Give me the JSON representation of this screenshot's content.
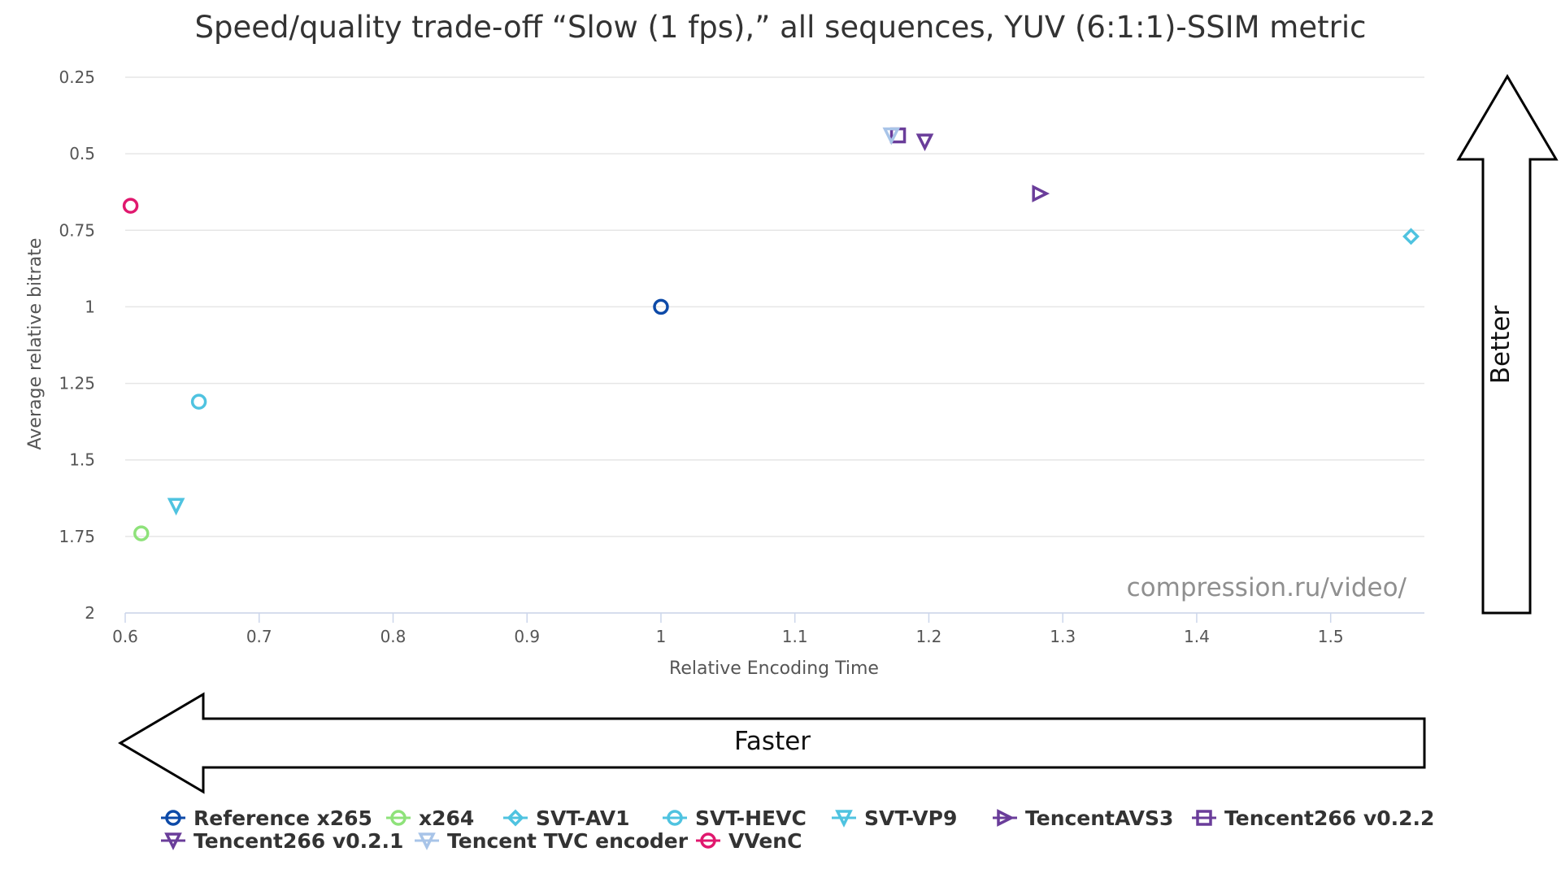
{
  "chart_data": {
    "type": "scatter",
    "title": "Speed/quality trade-off “Slow (1 fps),” all sequences, YUV (6:1:1)-SSIM metric",
    "xlabel": "Relative Encoding Time",
    "ylabel": "Average relative bitrate",
    "xlim": [
      0.6,
      1.57
    ],
    "ylim": [
      0.25,
      2
    ],
    "y_reversed": true,
    "x_ticks": [
      "0.6",
      "0.7",
      "0.8",
      "0.9",
      "1",
      "1.1",
      "1.2",
      "1.3",
      "1.4",
      "1.5"
    ],
    "y_ticks": [
      "0.25",
      "0.5",
      "0.75",
      "1",
      "1.25",
      "1.5",
      "1.75",
      "2"
    ],
    "grid": "horizontal",
    "legend_position": "bottom",
    "watermark": "compression.ru/video/",
    "arrow_faster_label": "Faster",
    "arrow_better_label": "Better",
    "series": [
      {
        "name": "Reference x265",
        "color": "#0d4aa8",
        "marker": "circle",
        "points": [
          [
            1.0,
            1.0
          ]
        ]
      },
      {
        "name": "x264",
        "color": "#8ee27a",
        "marker": "circle",
        "points": [
          [
            0.612,
            1.74
          ]
        ]
      },
      {
        "name": "SVT-AV1",
        "color": "#4fc3e0",
        "marker": "diamond",
        "points": [
          [
            1.56,
            0.77
          ]
        ]
      },
      {
        "name": "SVT-HEVC",
        "color": "#4fc3e0",
        "marker": "circle",
        "points": [
          [
            0.655,
            1.31
          ]
        ]
      },
      {
        "name": "SVT-VP9",
        "color": "#4fc3e0",
        "marker": "triangle-down",
        "points": [
          [
            0.638,
            1.65
          ]
        ]
      },
      {
        "name": "TencentAVS3",
        "color": "#6a3d9a",
        "marker": "triangle-right",
        "points": [
          [
            1.283,
            0.63
          ]
        ]
      },
      {
        "name": "Tencent266 v0.2.2",
        "color": "#6a3d9a",
        "marker": "square",
        "points": [
          [
            1.177,
            0.44
          ]
        ]
      },
      {
        "name": "Tencent266 v0.2.1",
        "color": "#6a3d9a",
        "marker": "triangle-down",
        "points": [
          [
            1.197,
            0.46
          ]
        ]
      },
      {
        "name": "Tencent TVC encoder",
        "color": "#a8c4e8",
        "marker": "triangle-down",
        "points": [
          [
            1.172,
            0.44
          ]
        ]
      },
      {
        "name": "VVenC",
        "color": "#e0186e",
        "marker": "circle",
        "points": [
          [
            0.604,
            0.67
          ]
        ]
      }
    ]
  }
}
